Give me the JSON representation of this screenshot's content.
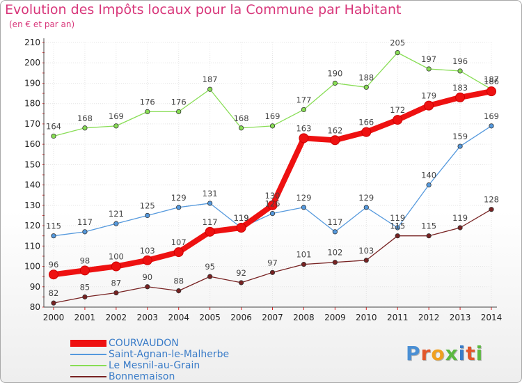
{
  "title": "Evolution des Impôts locaux pour la Commune par Habitant",
  "subtitle": "(en € et par an)",
  "logo": {
    "text": "Proxiti",
    "letter_colors": [
      "#4a8fd4",
      "#e2562a",
      "#f0a020",
      "#5cb840",
      "#3a7cc8",
      "#e2562a",
      "#5cb840"
    ]
  },
  "chart_data": {
    "type": "line",
    "x": [
      "2000",
      "2001",
      "2002",
      "2003",
      "2004",
      "2005",
      "2006",
      "2007",
      "2008",
      "2009",
      "2010",
      "2011",
      "2012",
      "2013",
      "2014"
    ],
    "ylim": [
      80,
      210
    ],
    "yticks": [
      80,
      90,
      100,
      110,
      120,
      130,
      140,
      150,
      160,
      170,
      180,
      190,
      200,
      210
    ],
    "grid": true,
    "legend_position": "bottom-left",
    "series": [
      {
        "name": "COURVAUDON",
        "color": "#ee1111",
        "highlight": true,
        "values": [
          96,
          98,
          100,
          103,
          107,
          117,
          119,
          130,
          163,
          162,
          166,
          172,
          179,
          183,
          186
        ]
      },
      {
        "name": "Saint-Agnan-le-Malherbe",
        "color": "#5599dd",
        "values": [
          115,
          117,
          121,
          125,
          129,
          131,
          119,
          126,
          129,
          117,
          129,
          119,
          140,
          159,
          169
        ]
      },
      {
        "name": "Le Mesnil-au-Grain",
        "color": "#88dd55",
        "values": [
          164,
          168,
          169,
          176,
          176,
          187,
          168,
          169,
          177,
          190,
          188,
          205,
          197,
          196,
          187
        ]
      },
      {
        "name": "Bonnemaison",
        "color": "#772222",
        "values": [
          82,
          85,
          87,
          90,
          88,
          95,
          92,
          97,
          101,
          102,
          103,
          115,
          115,
          119,
          128
        ]
      }
    ]
  }
}
